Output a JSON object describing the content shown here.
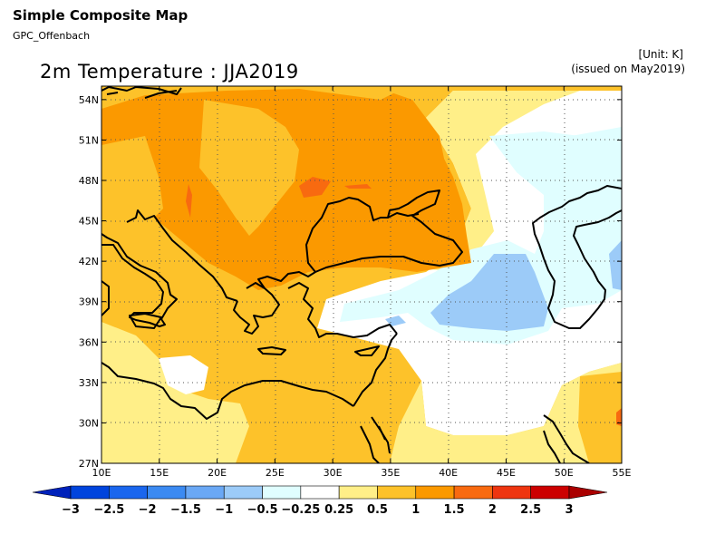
{
  "header": {
    "title": "Simple Composite Map",
    "source": "GPC_Offenbach",
    "unit": "[Unit: K]",
    "issued": "(issued on May2019)"
  },
  "map": {
    "title": "2m Temperature : JJA2019",
    "lon_range": [
      10,
      55
    ],
    "lat_range": [
      27,
      55
    ],
    "lon_ticks": [
      "10E",
      "15E",
      "20E",
      "25E",
      "30E",
      "35E",
      "40E",
      "45E",
      "50E",
      "55E"
    ],
    "lat_ticks": [
      "27N",
      "30N",
      "33N",
      "36N",
      "39N",
      "42N",
      "45N",
      "48N",
      "51N",
      "54N"
    ],
    "grid": "dotted"
  },
  "colorbar": {
    "labels": [
      "−3",
      "−2.5",
      "−2",
      "−1.5",
      "−1",
      "−0.5",
      "−0.25",
      "0.25",
      "0.5",
      "1",
      "1.5",
      "2",
      "2.5",
      "3"
    ],
    "colors": [
      "#0022bb",
      "#0044dd",
      "#1a66ee",
      "#3b8af2",
      "#6aa8f5",
      "#9ccbf8",
      "#e0feff",
      "#ffffff",
      "#ffef88",
      "#fdc22a",
      "#fb9900",
      "#f86a10",
      "#ee3510",
      "#cc0000",
      "#aa0000"
    ]
  }
}
